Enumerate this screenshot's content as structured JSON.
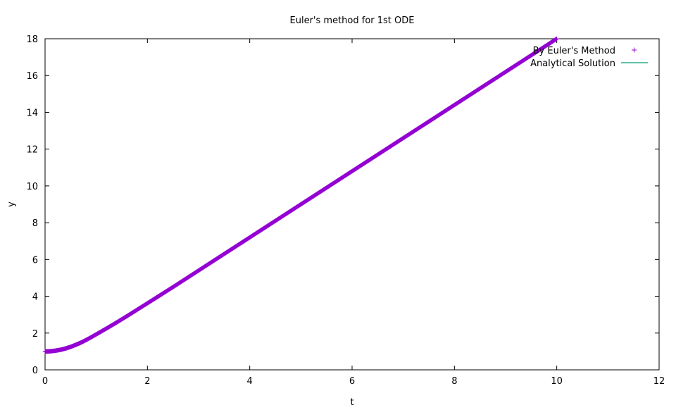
{
  "chart_data": {
    "type": "scatter",
    "title": "Euler's method for 1st ODE",
    "xlabel": "t",
    "ylabel": "y",
    "xlim": [
      0,
      12
    ],
    "ylim": [
      0,
      18
    ],
    "xticks": [
      0,
      2,
      4,
      6,
      8,
      10,
      12
    ],
    "yticks": [
      0,
      2,
      4,
      6,
      8,
      10,
      12,
      14,
      16,
      18
    ],
    "grid": false,
    "legend_position": "top-right",
    "series": [
      {
        "name": "By Euler's Method",
        "style": "points",
        "marker": "plus",
        "color": "#9400d3",
        "x": [
          0,
          0.1,
          0.2,
          0.3,
          0.4,
          0.5,
          0.6,
          0.7,
          0.8,
          0.9,
          1.0,
          1.2,
          1.4,
          1.6,
          1.8,
          2.0,
          2.5,
          3.0,
          3.5,
          4.0,
          4.5,
          5.0,
          5.5,
          6.0,
          6.5,
          7.0,
          7.5,
          8.0,
          8.5,
          9.0,
          9.5,
          10.0
        ],
        "y": [
          1.0,
          1.01,
          1.04,
          1.09,
          1.16,
          1.25,
          1.36,
          1.48,
          1.62,
          1.77,
          1.93,
          2.25,
          2.58,
          2.92,
          3.27,
          3.62,
          4.5,
          5.4,
          6.3,
          7.2,
          8.1,
          9.0,
          9.9,
          10.8,
          11.7,
          12.6,
          13.5,
          14.4,
          15.3,
          16.2,
          17.1,
          18.0
        ]
      },
      {
        "name": "Analytical Solution",
        "style": "line",
        "color": "#009e73",
        "x": [
          0,
          0.1,
          0.2,
          0.3,
          0.4,
          0.5,
          0.6,
          0.7,
          0.8,
          0.9,
          1.0,
          1.2,
          1.4,
          1.6,
          1.8,
          2.0,
          2.5,
          3.0,
          3.5,
          4.0,
          4.5,
          5.0,
          5.5,
          6.0,
          6.5,
          7.0,
          7.5,
          8.0,
          8.5,
          9.0,
          9.5,
          10.0
        ],
        "y": [
          1.0,
          1.01,
          1.04,
          1.09,
          1.16,
          1.25,
          1.36,
          1.48,
          1.62,
          1.77,
          1.93,
          2.25,
          2.58,
          2.92,
          3.27,
          3.62,
          4.5,
          5.4,
          6.3,
          7.2,
          8.1,
          9.0,
          9.9,
          10.8,
          11.7,
          12.6,
          13.5,
          14.4,
          15.3,
          16.2,
          17.1,
          18.0
        ]
      }
    ]
  }
}
